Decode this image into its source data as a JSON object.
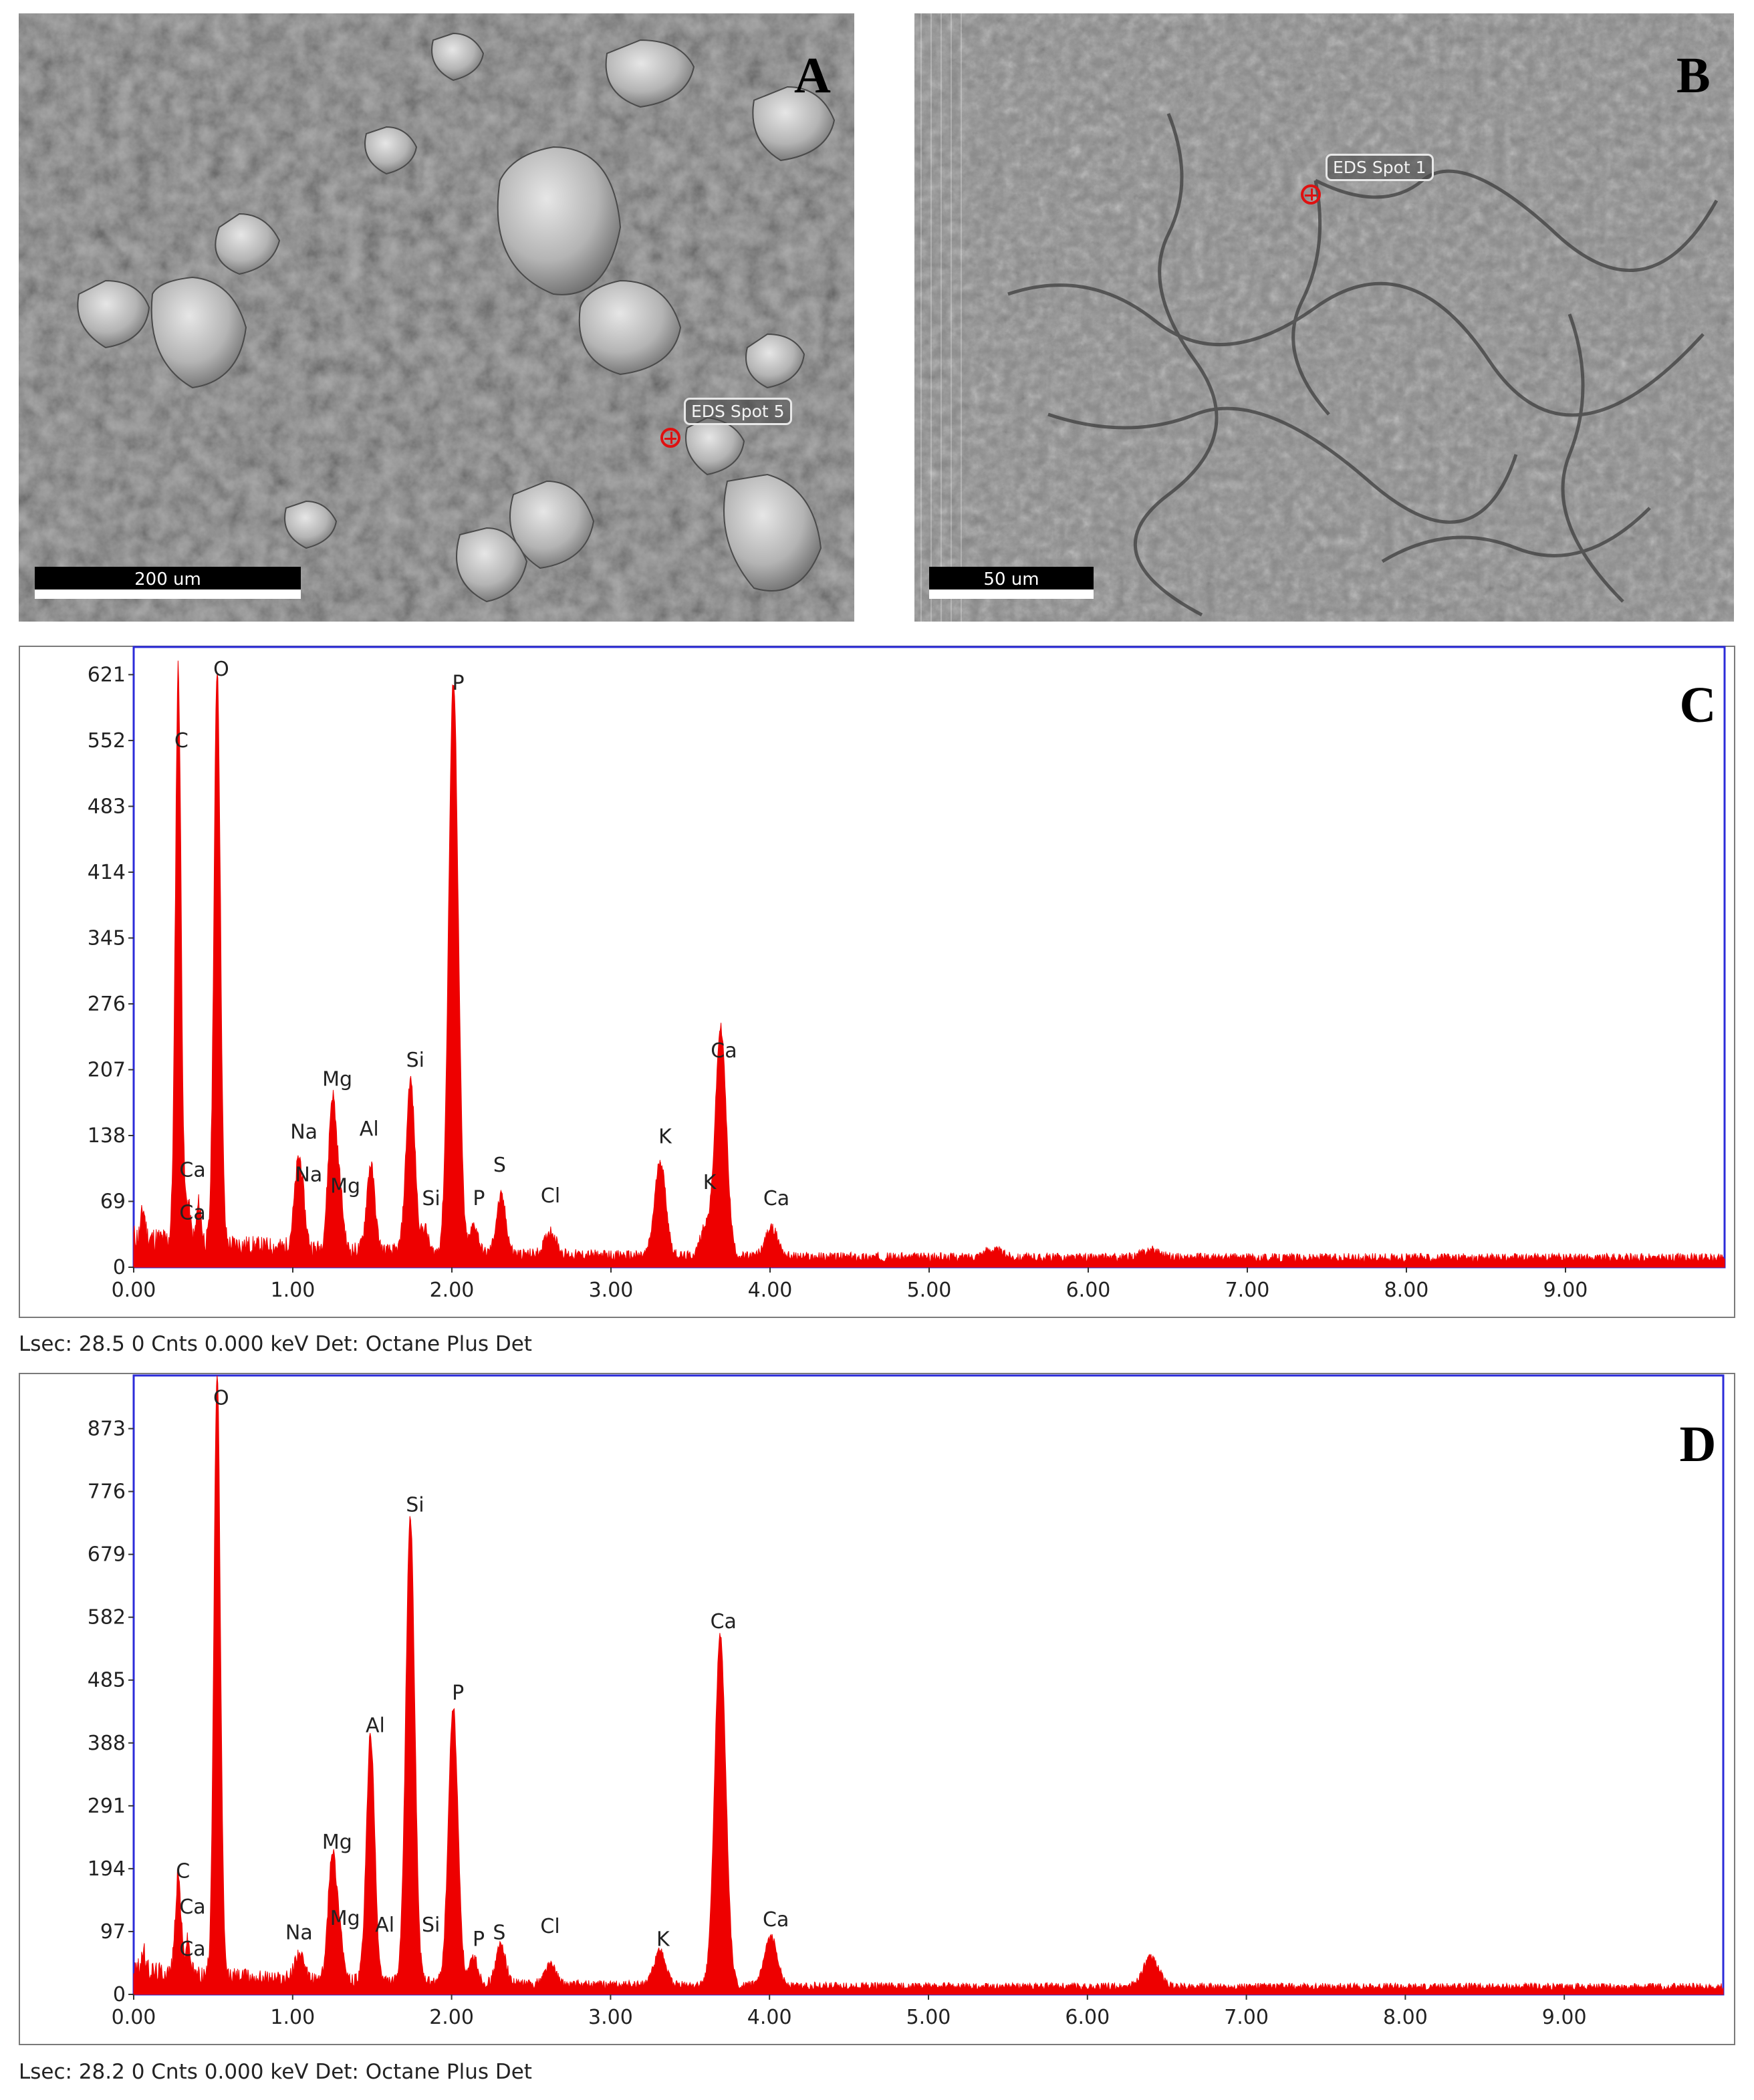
{
  "panels": {
    "A": {
      "letter": "A",
      "scale_bar": "200 um",
      "spot": "EDS Spot 5"
    },
    "B": {
      "letter": "B",
      "scale_bar": "50 um",
      "spot": "EDS Spot 1"
    }
  },
  "chart_data": [
    {
      "panel": "C",
      "type": "area",
      "xlabel": "",
      "ylabel": "",
      "xlim": [
        0,
        10
      ],
      "ylim": [
        0,
        650
      ],
      "x_ticks": [
        "0.00",
        "1.00",
        "2.00",
        "3.00",
        "4.00",
        "5.00",
        "6.00",
        "7.00",
        "8.00",
        "9.00"
      ],
      "y_ticks": [
        "0",
        "69",
        "138",
        "207",
        "276",
        "345",
        "414",
        "483",
        "552",
        "621"
      ],
      "color": "#ee0000",
      "baseline": 10,
      "peaks": [
        {
          "x": 0.06,
          "y": 30,
          "w": 0.012
        },
        {
          "x": 0.28,
          "y": 600,
          "w": 0.018
        },
        {
          "x": 0.34,
          "y": 40,
          "w": 0.015
        },
        {
          "x": 0.41,
          "y": 40,
          "w": 0.015
        },
        {
          "x": 0.525,
          "y": 605,
          "w": 0.02
        },
        {
          "x": 1.04,
          "y": 95,
          "w": 0.028
        },
        {
          "x": 1.25,
          "y": 160,
          "w": 0.026
        },
        {
          "x": 1.3,
          "y": 45,
          "w": 0.02
        },
        {
          "x": 1.49,
          "y": 90,
          "w": 0.026
        },
        {
          "x": 1.74,
          "y": 180,
          "w": 0.028
        },
        {
          "x": 1.83,
          "y": 25,
          "w": 0.02
        },
        {
          "x": 2.01,
          "y": 600,
          "w": 0.03
        },
        {
          "x": 2.14,
          "y": 30,
          "w": 0.025
        },
        {
          "x": 2.31,
          "y": 60,
          "w": 0.03
        },
        {
          "x": 2.62,
          "y": 25,
          "w": 0.035
        },
        {
          "x": 3.31,
          "y": 100,
          "w": 0.035
        },
        {
          "x": 3.59,
          "y": 30,
          "w": 0.03
        },
        {
          "x": 3.69,
          "y": 240,
          "w": 0.035
        },
        {
          "x": 4.01,
          "y": 30,
          "w": 0.04
        },
        {
          "x": 5.4,
          "y": 8,
          "w": 0.06
        },
        {
          "x": 6.4,
          "y": 8,
          "w": 0.06
        }
      ],
      "labels": [
        {
          "text": "C",
          "x": 0.3,
          "y": 545
        },
        {
          "text": "O",
          "x": 0.55,
          "y": 620
        },
        {
          "text": "P",
          "x": 2.04,
          "y": 605
        },
        {
          "text": "Mg",
          "x": 1.28,
          "y": 190
        },
        {
          "text": "Si",
          "x": 1.77,
          "y": 210
        },
        {
          "text": "Na",
          "x": 1.07,
          "y": 135
        },
        {
          "text": "Al",
          "x": 1.48,
          "y": 138
        },
        {
          "text": "Ca",
          "x": 0.37,
          "y": 95
        },
        {
          "text": "Ca",
          "x": 0.37,
          "y": 50
        },
        {
          "text": "Na",
          "x": 1.1,
          "y": 90
        },
        {
          "text": "Mg",
          "x": 1.33,
          "y": 78
        },
        {
          "text": "Si",
          "x": 1.87,
          "y": 65
        },
        {
          "text": "P",
          "x": 2.17,
          "y": 65
        },
        {
          "text": "S",
          "x": 2.3,
          "y": 100
        },
        {
          "text": "Cl",
          "x": 2.62,
          "y": 68
        },
        {
          "text": "K",
          "x": 3.34,
          "y": 130
        },
        {
          "text": "K",
          "x": 3.62,
          "y": 82
        },
        {
          "text": "Ca",
          "x": 3.71,
          "y": 220
        },
        {
          "text": "Ca",
          "x": 4.04,
          "y": 65
        }
      ],
      "footer": "Lsec: 28.5 0 Cnts  0.000 keV Det: Octane Plus Det"
    },
    {
      "panel": "D",
      "type": "area",
      "xlabel": "",
      "ylabel": "",
      "xlim": [
        0,
        10
      ],
      "ylim": [
        0,
        955
      ],
      "x_ticks": [
        "0.00",
        "1.00",
        "2.00",
        "3.00",
        "4.00",
        "5.00",
        "6.00",
        "7.00",
        "8.00",
        "9.00"
      ],
      "y_ticks": [
        "0",
        "97",
        "194",
        "291",
        "388",
        "485",
        "582",
        "679",
        "776",
        "873"
      ],
      "color": "#ee0000",
      "baseline": 12,
      "peaks": [
        {
          "x": 0.06,
          "y": 30,
          "w": 0.012
        },
        {
          "x": 0.28,
          "y": 150,
          "w": 0.018
        },
        {
          "x": 0.34,
          "y": 50,
          "w": 0.015
        },
        {
          "x": 0.525,
          "y": 935,
          "w": 0.02
        },
        {
          "x": 1.04,
          "y": 40,
          "w": 0.028
        },
        {
          "x": 1.25,
          "y": 200,
          "w": 0.026
        },
        {
          "x": 1.3,
          "y": 60,
          "w": 0.02
        },
        {
          "x": 1.49,
          "y": 380,
          "w": 0.026
        },
        {
          "x": 1.74,
          "y": 720,
          "w": 0.028
        },
        {
          "x": 2.01,
          "y": 425,
          "w": 0.03
        },
        {
          "x": 2.14,
          "y": 40,
          "w": 0.025
        },
        {
          "x": 2.31,
          "y": 60,
          "w": 0.03
        },
        {
          "x": 2.62,
          "y": 30,
          "w": 0.035
        },
        {
          "x": 3.31,
          "y": 55,
          "w": 0.035
        },
        {
          "x": 3.69,
          "y": 540,
          "w": 0.035
        },
        {
          "x": 4.01,
          "y": 75,
          "w": 0.04
        },
        {
          "x": 6.4,
          "y": 45,
          "w": 0.05
        }
      ],
      "labels": [
        {
          "text": "O",
          "x": 0.55,
          "y": 910
        },
        {
          "text": "Si",
          "x": 1.77,
          "y": 745
        },
        {
          "text": "P",
          "x": 2.04,
          "y": 455
        },
        {
          "text": "Ca",
          "x": 3.71,
          "y": 565
        },
        {
          "text": "Al",
          "x": 1.52,
          "y": 405
        },
        {
          "text": "Mg",
          "x": 1.28,
          "y": 225
        },
        {
          "text": "C",
          "x": 0.31,
          "y": 180
        },
        {
          "text": "Ca",
          "x": 0.37,
          "y": 125
        },
        {
          "text": "Ca",
          "x": 0.37,
          "y": 60
        },
        {
          "text": "Na",
          "x": 1.04,
          "y": 85
        },
        {
          "text": "Mg",
          "x": 1.33,
          "y": 107
        },
        {
          "text": "Al",
          "x": 1.58,
          "y": 97
        },
        {
          "text": "Si",
          "x": 1.87,
          "y": 97
        },
        {
          "text": "P",
          "x": 2.17,
          "y": 75
        },
        {
          "text": "S",
          "x": 2.3,
          "y": 85
        },
        {
          "text": "Cl",
          "x": 2.62,
          "y": 95
        },
        {
          "text": "K",
          "x": 3.33,
          "y": 75
        },
        {
          "text": "Ca",
          "x": 4.04,
          "y": 105
        }
      ],
      "footer": "Lsec: 28.2 0 Cnts  0.000 keV Det: Octane Plus Det"
    }
  ]
}
